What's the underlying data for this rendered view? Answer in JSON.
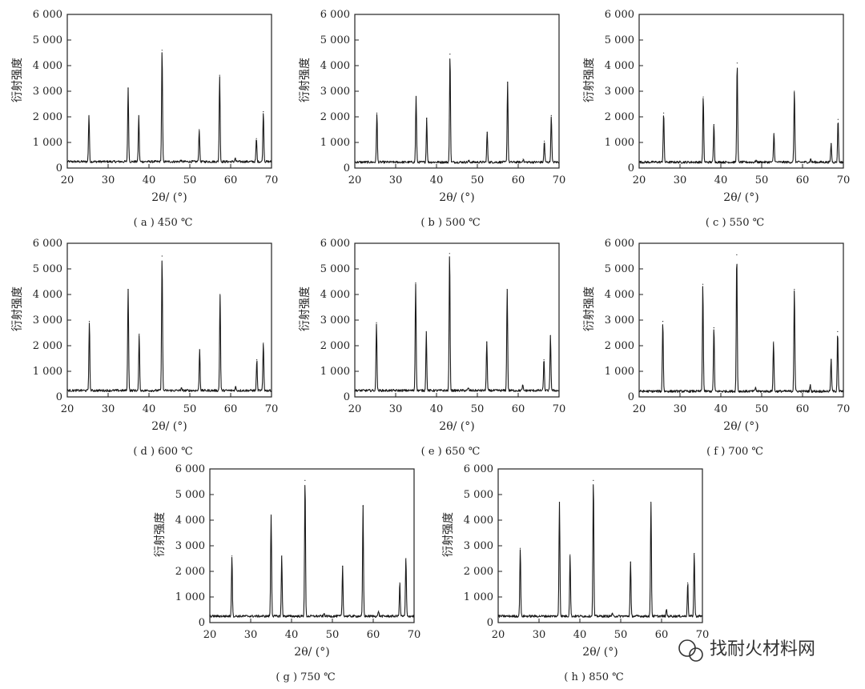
{
  "y_axis_label": "衍射强度",
  "x_axis_label": "2θ/ (°)",
  "watermark": "找耐火材料网",
  "chart_data": [
    {
      "type": "line",
      "caption": "( a ) 450 ℃",
      "xlim": [
        20,
        70
      ],
      "ylim": [
        0,
        6000
      ],
      "xticks": [
        20,
        30,
        40,
        50,
        60,
        70
      ],
      "yticks": [
        "0",
        "1 000",
        "2 000",
        "3 000",
        "4 000",
        "5 000",
        "6 000"
      ],
      "baseline": 250,
      "peaks": [
        [
          25.3,
          2050
        ],
        [
          34.9,
          3100
        ],
        [
          37.5,
          2050
        ],
        [
          43.2,
          4600
        ],
        [
          47.8,
          300
        ],
        [
          52.3,
          1500
        ],
        [
          57.3,
          3620
        ],
        [
          61.1,
          380
        ],
        [
          66.3,
          1150
        ],
        [
          68.0,
          2200
        ]
      ]
    },
    {
      "type": "line",
      "caption": "( b ) 500 ℃",
      "xlim": [
        20,
        70
      ],
      "ylim": [
        0,
        6000
      ],
      "xticks": [
        20,
        30,
        40,
        50,
        60,
        70
      ],
      "yticks": [
        "0",
        "1 000",
        "2 000",
        "3 000",
        "4 000",
        "5 000",
        "6 000"
      ],
      "baseline": 230,
      "peaks": [
        [
          25.4,
          2150
        ],
        [
          35.0,
          2800
        ],
        [
          37.6,
          1950
        ],
        [
          43.3,
          4450
        ],
        [
          47.9,
          280
        ],
        [
          52.4,
          1400
        ],
        [
          57.4,
          3350
        ],
        [
          61.2,
          350
        ],
        [
          66.4,
          1050
        ],
        [
          68.1,
          2050
        ]
      ]
    },
    {
      "type": "line",
      "caption": "( c ) 550 ℃",
      "xlim": [
        20,
        70
      ],
      "ylim": [
        0,
        6000
      ],
      "xticks": [
        20,
        30,
        40,
        50,
        60,
        70
      ],
      "yticks": [
        "0",
        "1 000",
        "2 000",
        "3 000",
        "4 000",
        "5 000",
        "6 000"
      ],
      "baseline": 230,
      "peaks": [
        [
          26.0,
          2150
        ],
        [
          35.7,
          2780
        ],
        [
          38.3,
          1700
        ],
        [
          44.0,
          4100
        ],
        [
          48.6,
          300
        ],
        [
          53.0,
          1350
        ],
        [
          58.0,
          3000
        ],
        [
          62.0,
          350
        ],
        [
          67.0,
          950
        ],
        [
          68.7,
          1900
        ]
      ]
    },
    {
      "type": "line",
      "caption": "( d ) 600 ℃",
      "xlim": [
        20,
        70
      ],
      "ylim": [
        0,
        6000
      ],
      "xticks": [
        20,
        30,
        40,
        50,
        60,
        70
      ],
      "yticks": [
        "0",
        "1 000",
        "2 000",
        "3 000",
        "4 000",
        "5 000",
        "6 000"
      ],
      "baseline": 250,
      "peaks": [
        [
          25.4,
          2950
        ],
        [
          34.9,
          4200
        ],
        [
          37.6,
          2450
        ],
        [
          43.2,
          5500
        ],
        [
          47.9,
          350
        ],
        [
          52.4,
          1850
        ],
        [
          57.4,
          4000
        ],
        [
          61.2,
          400
        ],
        [
          66.4,
          1450
        ],
        [
          68.0,
          2100
        ]
      ]
    },
    {
      "type": "line",
      "caption": "( e ) 650 ℃",
      "xlim": [
        20,
        70
      ],
      "ylim": [
        0,
        6000
      ],
      "xticks": [
        20,
        30,
        40,
        50,
        60,
        70
      ],
      "yticks": [
        "0",
        "1 000",
        "2 000",
        "3 000",
        "4 000",
        "5 000",
        "6 000"
      ],
      "baseline": 250,
      "peaks": [
        [
          25.3,
          2900
        ],
        [
          34.9,
          4450
        ],
        [
          37.5,
          2550
        ],
        [
          43.2,
          5600
        ],
        [
          47.8,
          350
        ],
        [
          52.3,
          2150
        ],
        [
          57.3,
          4200
        ],
        [
          61.1,
          450
        ],
        [
          66.3,
          1450
        ],
        [
          67.9,
          2400
        ]
      ]
    },
    {
      "type": "line",
      "caption": "( f ) 700 ℃",
      "xlim": [
        20,
        70
      ],
      "ylim": [
        0,
        6000
      ],
      "xticks": [
        20,
        30,
        40,
        50,
        60,
        70
      ],
      "yticks": [
        "0",
        "1 000",
        "2 000",
        "3 000",
        "4 000",
        "5 000",
        "6 000"
      ],
      "baseline": 220,
      "peaks": [
        [
          25.8,
          2950
        ],
        [
          35.6,
          4400
        ],
        [
          38.3,
          2700
        ],
        [
          43.9,
          5550
        ],
        [
          48.5,
          380
        ],
        [
          52.9,
          2150
        ],
        [
          58.0,
          4200
        ],
        [
          61.9,
          450
        ],
        [
          67.0,
          1450
        ],
        [
          68.6,
          2550
        ]
      ]
    },
    {
      "type": "line",
      "caption": "( g ) 750 ℃",
      "xlim": [
        20,
        70
      ],
      "ylim": [
        0,
        6000
      ],
      "xticks": [
        20,
        30,
        40,
        50,
        60,
        70
      ],
      "yticks": [
        "0",
        "1 000",
        "2 000",
        "3 000",
        "4 000",
        "5 000",
        "6 000"
      ],
      "baseline": 250,
      "peaks": [
        [
          25.4,
          2600
        ],
        [
          35.0,
          4200
        ],
        [
          37.6,
          2600
        ],
        [
          43.3,
          5550
        ],
        [
          48.0,
          350
        ],
        [
          52.5,
          2200
        ],
        [
          57.5,
          4550
        ],
        [
          61.3,
          450
        ],
        [
          66.5,
          1550
        ],
        [
          68.0,
          2500
        ]
      ]
    },
    {
      "type": "line",
      "caption": "( h ) 850 ℃",
      "xlim": [
        20,
        70
      ],
      "ylim": [
        0,
        6000
      ],
      "xticks": [
        20,
        30,
        40,
        50,
        60,
        70
      ],
      "yticks": [
        "0",
        "1 000",
        "2 000",
        "3 000",
        "4 000",
        "5 000",
        "6 000"
      ],
      "baseline": 250,
      "peaks": [
        [
          25.4,
          2900
        ],
        [
          35.0,
          4700
        ],
        [
          37.6,
          2650
        ],
        [
          43.3,
          5550
        ],
        [
          47.9,
          350
        ],
        [
          52.4,
          2350
        ],
        [
          57.4,
          4700
        ],
        [
          61.2,
          500
        ],
        [
          66.4,
          1550
        ],
        [
          68.0,
          2700
        ]
      ]
    }
  ]
}
